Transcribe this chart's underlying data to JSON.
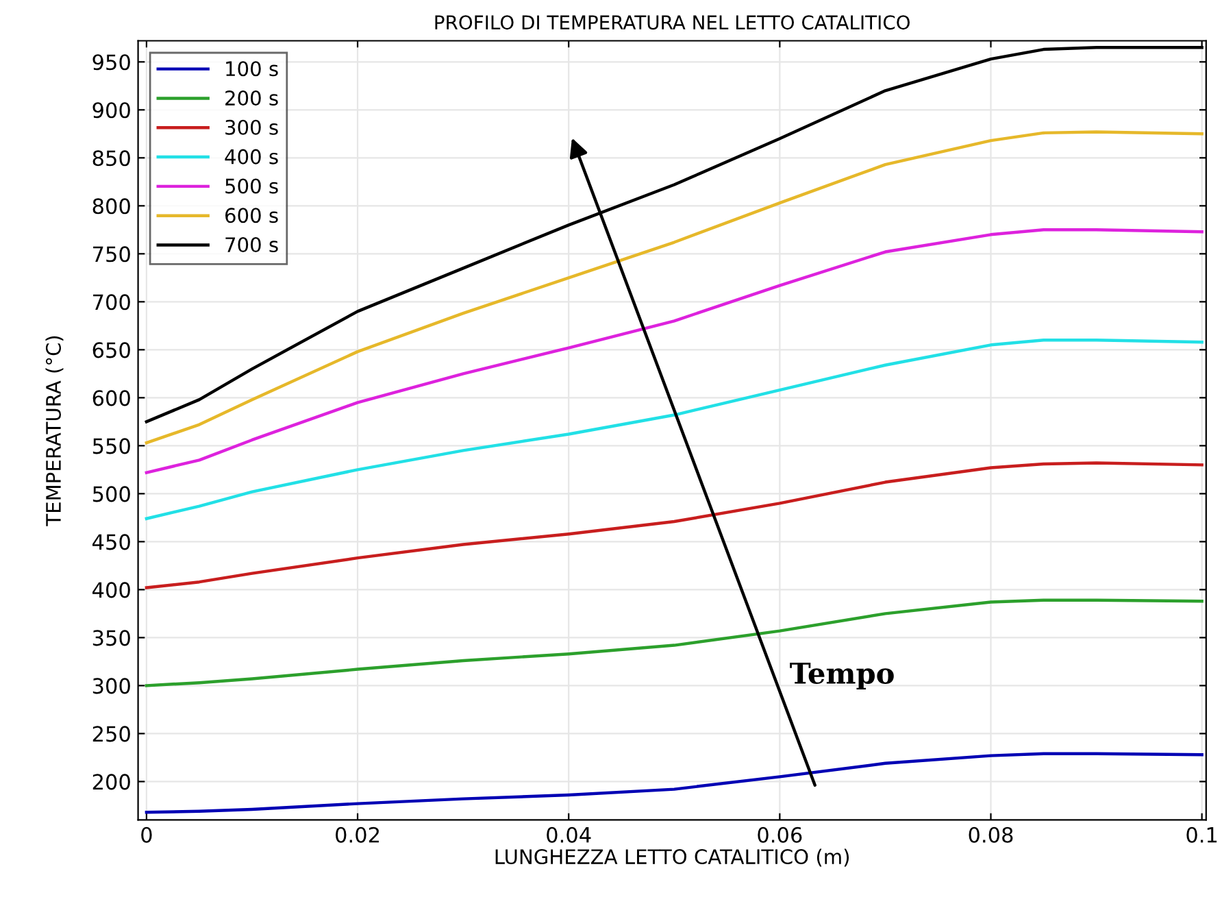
{
  "chart_data": {
    "type": "line",
    "title": "PROFILO DI TEMPERATURA NEL LETTO CATALITICO",
    "xlabel": "LUNGHEZZA LETTO CATALITICO (m)",
    "ylabel": "TEMPERATURA (°C)",
    "x": [
      0,
      0.005,
      0.01,
      0.02,
      0.03,
      0.04,
      0.05,
      0.06,
      0.07,
      0.08,
      0.085,
      0.09,
      0.1
    ],
    "series": [
      {
        "name": "100 s",
        "color": "#0000b4",
        "values": [
          168,
          169,
          171,
          177,
          182,
          186,
          192,
          205,
          219,
          227,
          229,
          229,
          228
        ]
      },
      {
        "name": "200 s",
        "color": "#2ca02c",
        "values": [
          300,
          303,
          307,
          317,
          326,
          333,
          342,
          357,
          375,
          387,
          389,
          389,
          388
        ]
      },
      {
        "name": "300 s",
        "color": "#c81e1e",
        "values": [
          402,
          408,
          417,
          433,
          447,
          458,
          471,
          490,
          512,
          527,
          531,
          532,
          530
        ]
      },
      {
        "name": "400 s",
        "color": "#22e0e6",
        "values": [
          474,
          487,
          502,
          525,
          545,
          562,
          582,
          608,
          634,
          655,
          660,
          660,
          658
        ]
      },
      {
        "name": "500 s",
        "color": "#dd22dd",
        "values": [
          522,
          535,
          556,
          595,
          625,
          652,
          680,
          717,
          752,
          770,
          775,
          775,
          773
        ]
      },
      {
        "name": "600 s",
        "color": "#e6b82a",
        "values": [
          553,
          572,
          598,
          648,
          688,
          725,
          762,
          803,
          843,
          868,
          876,
          877,
          875
        ]
      },
      {
        "name": "700 s",
        "color": "#000000",
        "values": [
          575,
          598,
          630,
          690,
          735,
          780,
          822,
          870,
          920,
          953,
          963,
          965,
          965
        ]
      }
    ],
    "annotations": [
      "Tempo"
    ],
    "xlim": [
      -0.0008,
      0.1004
    ],
    "ylim": [
      160,
      972
    ],
    "xticks": [
      0,
      0.02,
      0.04,
      0.06,
      0.08,
      0.1
    ],
    "yticks": [
      200,
      250,
      300,
      350,
      400,
      450,
      500,
      550,
      600,
      650,
      700,
      750,
      800,
      850,
      900,
      950
    ],
    "grid": true,
    "legend": "top left",
    "marker": "none",
    "line_style": "solid"
  }
}
